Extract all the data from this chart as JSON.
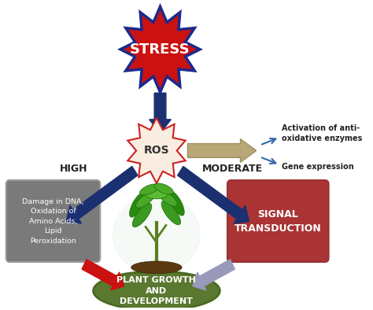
{
  "stress_text": "STRESS",
  "ros_text": "ROS",
  "high_text": "HIGH",
  "moderate_text": "MODERATE",
  "damage_text": "Damage in DNA,\nOxidation of\nAmino Acids,\nLipid\nPeroxidation",
  "signal_text": "SIGNAL\nTRANSDUCTION",
  "plant_text": "PLANT GROWTH\nAND\nDEVELOPMENT",
  "antioxidant_text": "Activation of anti-\noxidative enzymes",
  "gene_text": "Gene expression",
  "stress_fill": "#cc1111",
  "stress_border": "#1a2a8c",
  "ros_fill": "#f8ede0",
  "ros_border": "#cc2222",
  "damage_fill": "#7a7a7a",
  "signal_fill": "#aa3333",
  "plant_fill": "#5a7830",
  "arrow_blue_dark": "#1a3070",
  "arrow_red": "#cc1111",
  "arrow_purple": "#9999bb",
  "arrow_tan": "#b8a878",
  "arrow_small_blue": "#3366aa",
  "bg_color": "#ffffff",
  "text_dark": "#222222"
}
